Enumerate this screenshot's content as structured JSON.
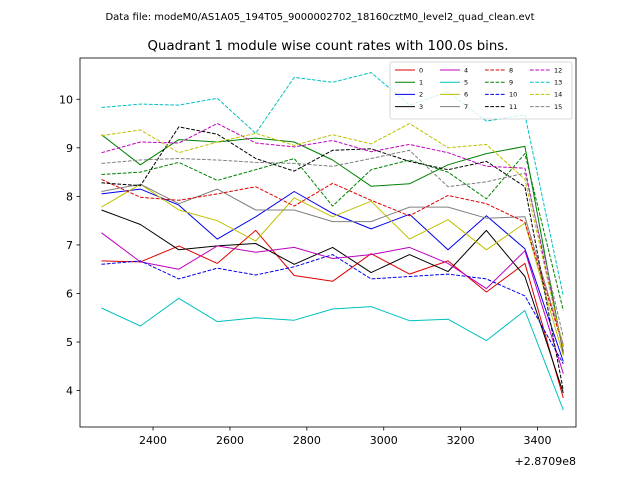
{
  "chart_data": {
    "type": "line",
    "suptitle": "Data file: modeM0/AS1A05_194T05_9000002702_18160cztM0_level2_quad_clean.evt",
    "title": "Quadrant 1 module wise count rates with 100.0s bins.",
    "xlabel": "",
    "ylabel": "",
    "x_offset_label": "+2.8709e8",
    "xlim": [
      2210,
      3500
    ],
    "ylim": [
      3.25,
      10.85
    ],
    "xticks": [
      2400,
      2600,
      2800,
      3000,
      3200,
      3400
    ],
    "xtick_labels": [
      "2400",
      "2600",
      "2800",
      "3000",
      "3200",
      "3400"
    ],
    "yticks": [
      4,
      5,
      6,
      7,
      8,
      9,
      10
    ],
    "ytick_labels": [
      "4",
      "5",
      "6",
      "7",
      "8",
      "9",
      "10"
    ],
    "grid": false,
    "legend_position": "top-right",
    "x": [
      2266,
      2367,
      2467,
      2567,
      2667,
      2767,
      2867,
      2967,
      3067,
      3167,
      3267,
      3367,
      3467
    ],
    "series": [
      {
        "name": "0",
        "color": "#e00000",
        "dash": "solid",
        "values": [
          6.67,
          6.65,
          6.98,
          6.62,
          7.3,
          6.37,
          6.25,
          6.82,
          6.4,
          6.67,
          6.03,
          6.62,
          3.85
        ]
      },
      {
        "name": "1",
        "color": "#008000",
        "dash": "solid",
        "values": [
          9.27,
          8.65,
          9.17,
          9.12,
          9.2,
          9.12,
          8.75,
          8.21,
          8.26,
          8.65,
          8.88,
          9.03,
          4.75
        ]
      },
      {
        "name": "2",
        "color": "#0000ee",
        "dash": "solid",
        "values": [
          8.05,
          8.15,
          7.82,
          7.12,
          7.58,
          8.1,
          7.65,
          7.33,
          7.63,
          6.9,
          7.6,
          6.92,
          4.6
        ]
      },
      {
        "name": "3",
        "color": "#000000",
        "dash": "solid",
        "values": [
          7.72,
          7.42,
          6.9,
          6.98,
          7.03,
          6.6,
          6.95,
          6.43,
          6.8,
          6.45,
          7.3,
          6.35,
          3.95
        ]
      },
      {
        "name": "4",
        "color": "#c000c0",
        "dash": "solid",
        "values": [
          7.25,
          6.65,
          6.5,
          6.98,
          6.85,
          6.95,
          6.72,
          6.8,
          6.95,
          6.62,
          6.1,
          6.88,
          4.35
        ]
      },
      {
        "name": "5",
        "color": "#00c0c0",
        "dash": "solid",
        "values": [
          5.7,
          5.33,
          5.9,
          5.42,
          5.5,
          5.45,
          5.68,
          5.73,
          5.44,
          5.47,
          5.03,
          5.65,
          3.6
        ]
      },
      {
        "name": "6",
        "color": "#c0c000",
        "dash": "solid",
        "values": [
          7.78,
          8.25,
          7.72,
          7.5,
          7.08,
          7.97,
          7.58,
          7.9,
          7.12,
          7.52,
          6.9,
          7.45,
          4.72
        ]
      },
      {
        "name": "7",
        "color": "#808080",
        "dash": "solid",
        "values": [
          8.1,
          8.25,
          7.85,
          8.15,
          7.72,
          7.72,
          7.48,
          7.48,
          7.78,
          7.78,
          7.55,
          7.58,
          4.95
        ]
      },
      {
        "name": "8",
        "color": "#e00000",
        "dash": "dashed",
        "values": [
          8.35,
          7.98,
          7.92,
          8.05,
          8.2,
          7.8,
          8.27,
          7.92,
          7.6,
          8.02,
          7.85,
          7.47,
          4.9
        ]
      },
      {
        "name": "9",
        "color": "#008000",
        "dash": "dashed",
        "values": [
          8.45,
          8.5,
          8.7,
          8.33,
          8.55,
          8.78,
          7.8,
          8.55,
          8.75,
          8.5,
          7.95,
          8.88,
          5.65
        ]
      },
      {
        "name": "10",
        "color": "#0000ee",
        "dash": "dashed",
        "values": [
          6.6,
          6.67,
          6.3,
          6.52,
          6.38,
          6.55,
          6.8,
          6.3,
          6.35,
          6.4,
          6.3,
          5.95,
          4.55
        ]
      },
      {
        "name": "11",
        "color": "#000000",
        "dash": "dashed",
        "values": [
          8.28,
          8.22,
          9.43,
          9.28,
          8.78,
          8.52,
          8.95,
          8.98,
          8.72,
          8.55,
          8.72,
          8.2,
          4.0
        ]
      },
      {
        "name": "12",
        "color": "#c000c0",
        "dash": "dashed",
        "values": [
          8.9,
          9.12,
          9.1,
          9.5,
          9.1,
          9.02,
          9.15,
          8.92,
          9.07,
          8.9,
          8.62,
          8.58,
          4.8
        ]
      },
      {
        "name": "13",
        "color": "#00c0c0",
        "dash": "dashed",
        "values": [
          9.83,
          9.9,
          9.88,
          10.02,
          9.3,
          10.45,
          10.35,
          10.55,
          9.88,
          10.15,
          9.55,
          9.68,
          5.95
        ]
      },
      {
        "name": "14",
        "color": "#c0c000",
        "dash": "dashed",
        "values": [
          9.25,
          9.37,
          8.9,
          9.12,
          9.3,
          9.05,
          9.27,
          9.08,
          9.5,
          9.0,
          9.07,
          8.35,
          4.85
        ]
      },
      {
        "name": "15",
        "color": "#808080",
        "dash": "dashed",
        "values": [
          8.68,
          8.75,
          8.78,
          8.75,
          8.7,
          8.68,
          8.62,
          8.78,
          8.95,
          8.2,
          8.3,
          8.48,
          5.1
        ]
      }
    ]
  }
}
